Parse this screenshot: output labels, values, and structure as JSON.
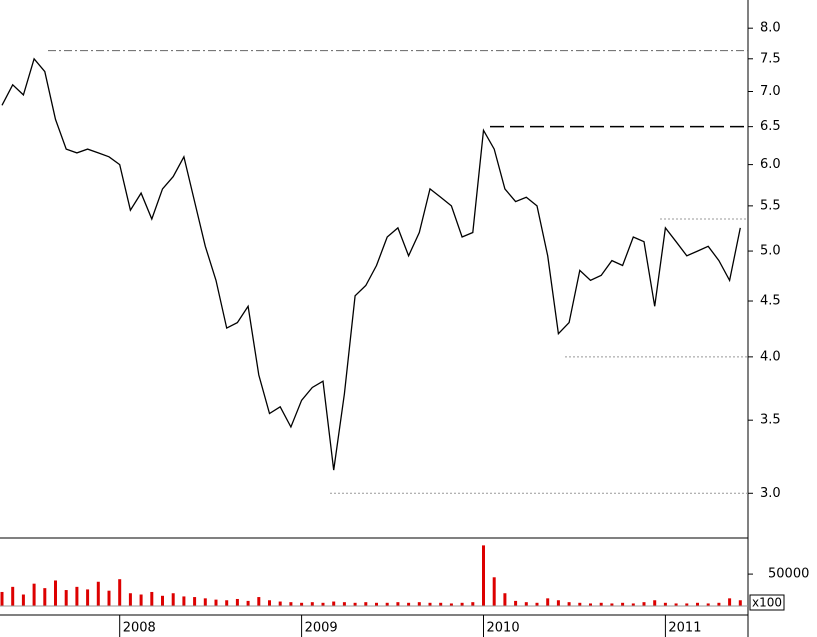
{
  "chart_data": {
    "type": "line",
    "categories": [
      null,
      null,
      null,
      null,
      null,
      null,
      null,
      null,
      null,
      null,
      null,
      "2008",
      null,
      null,
      null,
      null,
      null,
      null,
      null,
      null,
      null,
      null,
      null,
      null,
      null,
      null,
      null,
      null,
      "2009",
      null,
      null,
      null,
      null,
      null,
      null,
      null,
      null,
      null,
      null,
      null,
      null,
      null,
      null,
      null,
      null,
      "2010",
      null,
      null,
      null,
      null,
      null,
      null,
      null,
      null,
      null,
      null,
      null,
      null,
      null,
      null,
      null,
      null,
      "2011",
      null,
      null,
      null,
      null,
      null,
      null,
      null
    ],
    "series": [
      {
        "color": "#000000",
        "values": [
          6.8,
          7.1,
          6.95,
          7.5,
          7.3,
          6.6,
          6.2,
          6.15,
          6.2,
          6.15,
          6.1,
          6.0,
          5.45,
          5.65,
          5.35,
          5.7,
          5.85,
          6.1,
          5.55,
          5.05,
          4.7,
          4.25,
          4.3,
          4.45,
          3.85,
          3.55,
          3.6,
          3.45,
          3.65,
          3.75,
          3.8,
          3.15,
          3.7,
          4.55,
          4.65,
          4.85,
          5.15,
          5.25,
          4.95,
          5.2,
          5.7,
          5.6,
          5.5,
          5.15,
          5.2,
          6.45,
          6.2,
          5.7,
          5.55,
          5.6,
          5.5,
          4.95,
          4.2,
          4.3,
          4.8,
          4.7,
          4.75,
          4.9,
          4.85,
          5.15,
          5.1,
          4.45,
          5.25,
          5.1,
          4.95,
          5.0,
          5.05,
          4.9,
          4.7,
          5.25
        ]
      }
    ],
    "ylim": [
      2.73,
      8.49
    ],
    "log_scale": true,
    "yticks": [
      {
        "value": 3,
        "label": "3.0"
      },
      3.5,
      {
        "value": 4,
        "label": "4.0"
      },
      4.5,
      {
        "value": 5,
        "label": "5.0"
      },
      5.5,
      {
        "value": 6,
        "label": "6.0"
      },
      6.5,
      {
        "value": 7,
        "label": "7.0"
      },
      7.5,
      {
        "value": 8,
        "label": "8.0"
      }
    ],
    "reference_lines": [
      {
        "value": 7.63,
        "style": "dashdot",
        "color": "#666666"
      },
      {
        "value": 6.5,
        "style": "longdash",
        "color": "#000000"
      },
      {
        "value": 5.35,
        "style": "dotted",
        "color": "#999999"
      },
      {
        "value": 4.0,
        "style": "dotted",
        "color": "#999999"
      },
      {
        "value": 3.0,
        "style": "dotted",
        "color": "#999999"
      }
    ],
    "volume": {
      "color": "#dd0000",
      "unit_label": "x100",
      "values": [
        22000,
        30000,
        18000,
        35000,
        28000,
        40000,
        25000,
        30000,
        26000,
        38000,
        24000,
        42000,
        20000,
        18000,
        22000,
        16000,
        20000,
        15000,
        14000,
        12000,
        10000,
        9000,
        11000,
        8000,
        14000,
        9000,
        7000,
        6000,
        5000,
        6000,
        5000,
        7000,
        6000,
        5000,
        6000,
        5000,
        5000,
        6000,
        5000,
        6000,
        5000,
        5000,
        4000,
        5000,
        6000,
        95000,
        45000,
        20000,
        8000,
        6000,
        5000,
        12000,
        9000,
        6000,
        5000,
        4000,
        5000,
        4000,
        5000,
        4000,
        6000,
        9000,
        5000,
        4000,
        4000,
        5000,
        4000,
        5000,
        12000,
        9000
      ],
      "ylim": [
        0,
        105000
      ],
      "yticks": [
        50000
      ]
    }
  }
}
